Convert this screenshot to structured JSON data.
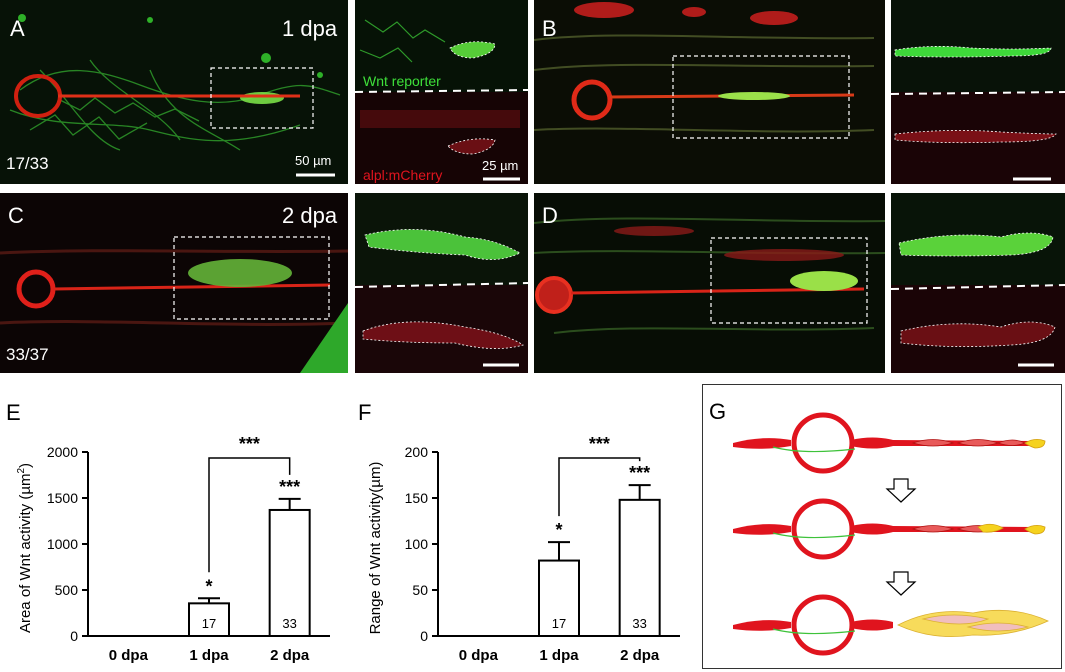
{
  "panels": {
    "A": {
      "label": "A",
      "time": "1 dpa",
      "count": "17/33",
      "scale": "50 µm"
    },
    "A_inset": {
      "top_label": "Wnt reporter",
      "bottom_label": "alpl:mCherry",
      "scale": "25 µm"
    },
    "B": {
      "label": "B"
    },
    "C": {
      "label": "C",
      "time": "2 dpa",
      "count": "33/37"
    },
    "D": {
      "label": "D"
    }
  },
  "chart_E": {
    "panel_label": "E",
    "chart_data": {
      "type": "bar",
      "categories": [
        "0 dpa",
        "1 dpa",
        "2 dpa"
      ],
      "values": [
        0,
        355,
        1370
      ],
      "errors": [
        0,
        55,
        120
      ],
      "n": [
        "",
        "17",
        "33"
      ],
      "significance": [
        "",
        "*",
        "***"
      ],
      "bracket": {
        "from": "1 dpa",
        "to": "2 dpa",
        "label": "***"
      },
      "ylabel": "Area of Wnt activity (µm²)",
      "ylabel_main": "Area of Wnt activity (µm",
      "ylabel_sup": "2",
      "ylabel_end": ")",
      "ylim": [
        0,
        2000
      ],
      "yticks": [
        "0",
        "500",
        "1000",
        "1500",
        "2000"
      ]
    }
  },
  "chart_F": {
    "panel_label": "F",
    "chart_data": {
      "type": "bar",
      "categories": [
        "0 dpa",
        "1 dpa",
        "2 dpa"
      ],
      "values": [
        0,
        82,
        148
      ],
      "errors": [
        0,
        20,
        16
      ],
      "n": [
        "",
        "17",
        "33"
      ],
      "significance": [
        "",
        "*",
        "***"
      ],
      "bracket": {
        "from": "1 dpa",
        "to": "2 dpa",
        "label": "***"
      },
      "ylabel": "Range of Wnt activity(µm)",
      "ylim": [
        0,
        200
      ],
      "yticks": [
        "0",
        "50",
        "100",
        "150",
        "200"
      ]
    }
  },
  "schematic_G": {
    "panel_label": "G"
  },
  "colors": {
    "red": "#e0141e",
    "green": "#3ec23a",
    "yellow": "#f5d21e",
    "black": "#000000"
  }
}
